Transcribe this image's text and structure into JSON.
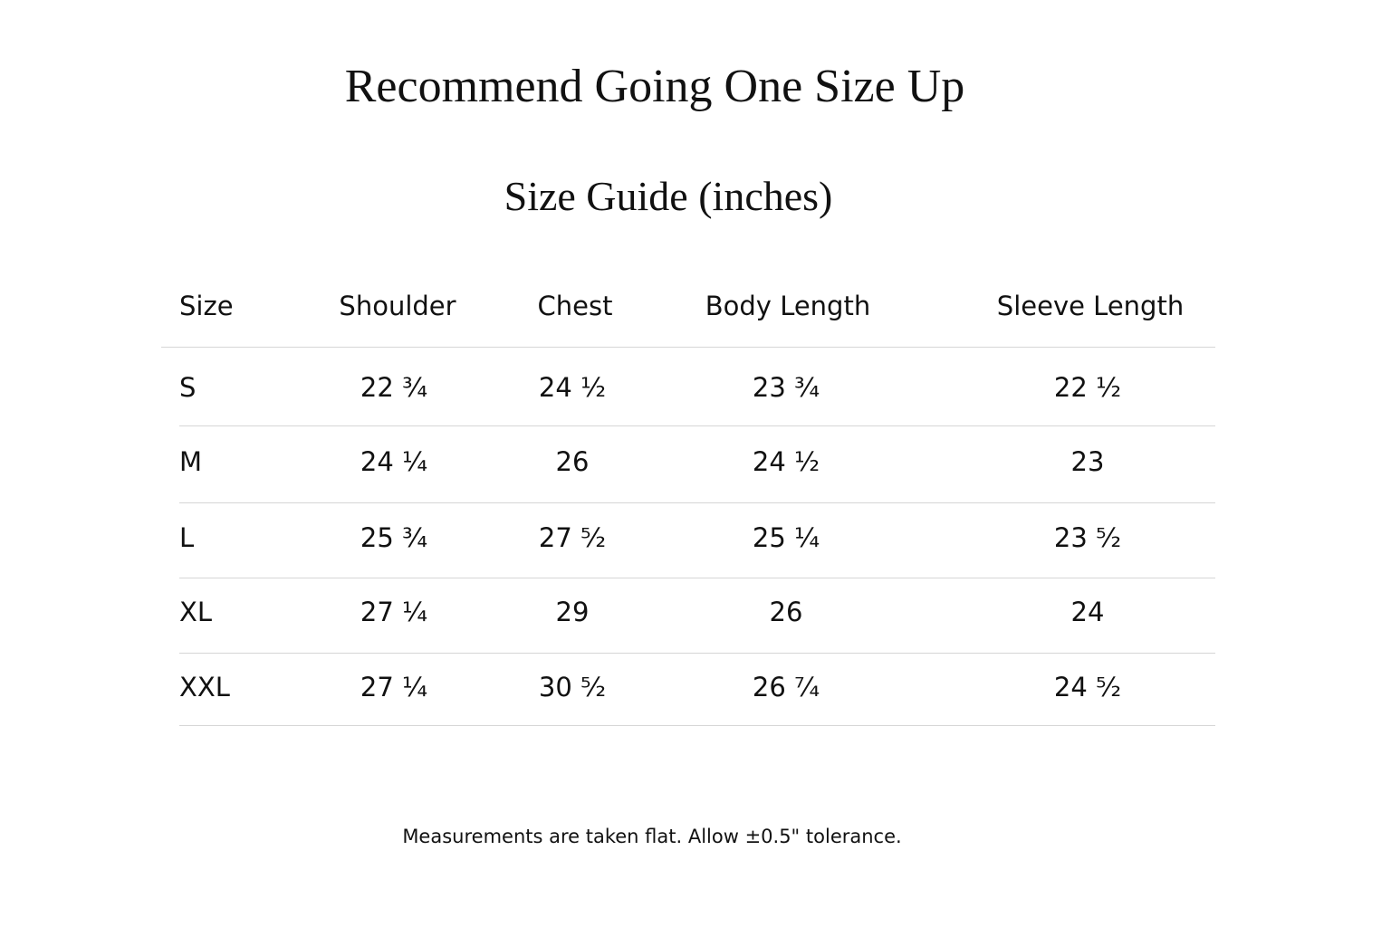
{
  "header": {
    "title": "Recommend Going One Size Up",
    "subtitle": "Size Guide (inches)"
  },
  "table": {
    "columns": [
      "Size",
      "Shoulder",
      "Chest",
      "Body Length",
      "Sleeve Length"
    ],
    "rows": [
      [
        "S",
        "22 ¾",
        "24 ½",
        "23 ¾",
        "22 ½"
      ],
      [
        "M",
        "24 ¼",
        "26",
        "24 ½",
        "23"
      ],
      [
        "L",
        "25 ¾",
        "27 ⁵⁄₂",
        "25 ¼",
        "23 ⁵⁄₂"
      ],
      [
        "XL",
        "27 ¼",
        "29",
        "26",
        "24"
      ],
      [
        "XXL",
        "27 ¼",
        "30 ⁵⁄₂",
        "26 ⁷⁄₄",
        "24 ⁵⁄₂"
      ]
    ]
  },
  "footnote": "Measurements are taken flat. Allow ±0.5\" tolerance."
}
